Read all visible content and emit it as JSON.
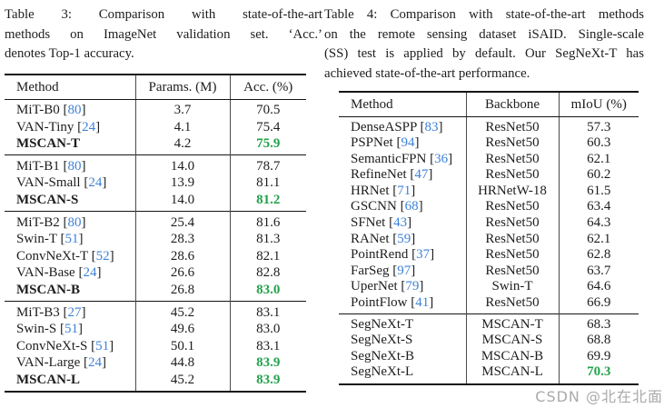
{
  "colors": {
    "citation": "#3e82d8",
    "highlight": "#22a34c",
    "rule": "#151515",
    "watermark": "#9b9b9b"
  },
  "watermark": {
    "text": "CSDN @北在北面"
  },
  "table3": {
    "col_names": [
      "method",
      "params",
      "acc"
    ],
    "caption_lines": [
      "Table 3: Comparison with state-of-the-art",
      "methods on ImageNet validation set. ‘Acc.’",
      "denotes Top-1 accuracy."
    ],
    "headers": [
      "Method",
      "Params. (M)",
      "Acc. (%)"
    ],
    "groups": [
      [
        {
          "method": "MiT-B0",
          "cite": "80",
          "cells": [
            "3.7",
            "70.5"
          ]
        },
        {
          "method": "VAN-Tiny",
          "cite": "24",
          "cells": [
            "4.1",
            "75.4"
          ]
        },
        {
          "method": "MSCAN-T",
          "bold": true,
          "cells": [
            "4.2",
            "75.9"
          ],
          "green": [
            1
          ]
        }
      ],
      [
        {
          "method": "MiT-B1",
          "cite": "80",
          "cells": [
            "14.0",
            "78.7"
          ]
        },
        {
          "method": "VAN-Small",
          "cite": "24",
          "cells": [
            "13.9",
            "81.1"
          ]
        },
        {
          "method": "MSCAN-S",
          "bold": true,
          "cells": [
            "14.0",
            "81.2"
          ],
          "green": [
            1
          ]
        }
      ],
      [
        {
          "method": "MiT-B2",
          "cite": "80",
          "cells": [
            "25.4",
            "81.6"
          ]
        },
        {
          "method": "Swin-T",
          "cite": "51",
          "cells": [
            "28.3",
            "81.3"
          ]
        },
        {
          "method": "ConvNeXt-T",
          "cite": "52",
          "cells": [
            "28.6",
            "82.1"
          ]
        },
        {
          "method": "VAN-Base",
          "cite": "24",
          "cells": [
            "26.6",
            "82.8"
          ]
        },
        {
          "method": "MSCAN-B",
          "bold": true,
          "cells": [
            "26.8",
            "83.0"
          ],
          "green": [
            1
          ]
        }
      ],
      [
        {
          "method": "MiT-B3",
          "cite": "27",
          "cells": [
            "45.2",
            "83.1"
          ]
        },
        {
          "method": "Swin-S",
          "cite": "51",
          "cells": [
            "49.6",
            "83.0"
          ]
        },
        {
          "method": "ConvNeXt-S",
          "cite": "51",
          "cells": [
            "50.1",
            "83.1"
          ]
        },
        {
          "method": "VAN-Large",
          "cite": "24",
          "cells": [
            "44.8",
            "83.9"
          ],
          "green": [
            1
          ]
        },
        {
          "method": "MSCAN-L",
          "bold": true,
          "cells": [
            "45.2",
            "83.9"
          ],
          "green": [
            1
          ]
        }
      ]
    ]
  },
  "table4": {
    "col_names": [
      "method",
      "backbone",
      "miou"
    ],
    "caption_lines": [
      "Table 4: Comparison with state-of-the-art methods",
      "on the remote sensing dataset iSAID. Single-scale",
      "(SS) test is applied by default. Our SegNeXt-T has",
      "achieved state-of-the-art performance."
    ],
    "headers": [
      "Method",
      "Backbone",
      "mIoU (%)"
    ],
    "groups": [
      [
        {
          "method": "DenseASPP",
          "cite": "83",
          "cells": [
            "ResNet50",
            "57.3"
          ]
        },
        {
          "method": "PSPNet",
          "cite": "94",
          "cells": [
            "ResNet50",
            "60.3"
          ]
        },
        {
          "method": "SemanticFPN",
          "cite": "36",
          "cells": [
            "ResNet50",
            "62.1"
          ]
        },
        {
          "method": "RefineNet",
          "cite": "47",
          "cells": [
            "ResNet50",
            "60.2"
          ]
        },
        {
          "method": "HRNet",
          "cite": "71",
          "cells": [
            "HRNetW-18",
            "61.5"
          ]
        },
        {
          "method": "GSCNN",
          "cite": "68",
          "cells": [
            "ResNet50",
            "63.4"
          ]
        },
        {
          "method": "SFNet",
          "cite": "43",
          "cells": [
            "ResNet50",
            "64.3"
          ]
        },
        {
          "method": "RANet",
          "cite": "59",
          "cells": [
            "ResNet50",
            "62.1"
          ]
        },
        {
          "method": "PointRend",
          "cite": "37",
          "cells": [
            "ResNet50",
            "62.8"
          ]
        },
        {
          "method": "FarSeg",
          "cite": "97",
          "cells": [
            "ResNet50",
            "63.7"
          ]
        },
        {
          "method": "UperNet",
          "cite": "79",
          "cells": [
            "Swin-T",
            "64.6"
          ]
        },
        {
          "method": "PointFlow",
          "cite": "41",
          "cells": [
            "ResNet50",
            "66.9"
          ]
        }
      ],
      [
        {
          "method": "SegNeXt-T",
          "cells": [
            "MSCAN-T",
            "68.3"
          ]
        },
        {
          "method": "SegNeXt-S",
          "cells": [
            "MSCAN-S",
            "68.8"
          ]
        },
        {
          "method": "SegNeXt-B",
          "cells": [
            "MSCAN-B",
            "69.9"
          ]
        },
        {
          "method": "SegNeXt-L",
          "cells": [
            "MSCAN-L",
            "70.3"
          ],
          "green": [
            1
          ]
        }
      ]
    ]
  }
}
